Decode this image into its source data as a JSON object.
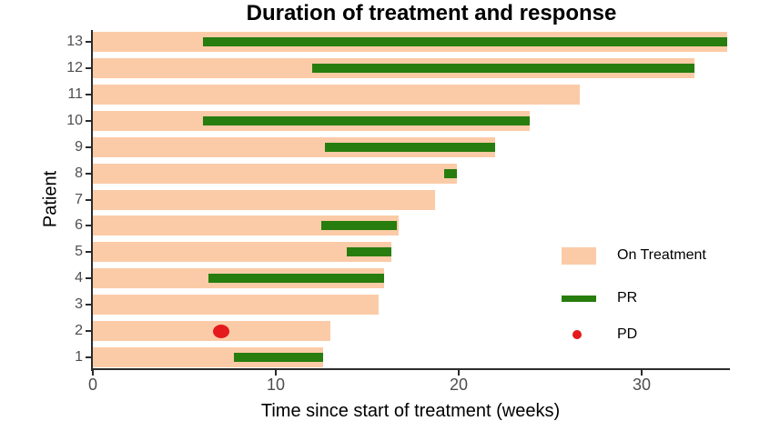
{
  "chart_data": {
    "type": "bar",
    "variant": "swimmer-plot",
    "title": "Duration of treatment and response",
    "xlabel": "Time since start of treatment (weeks)",
    "ylabel": "Patient",
    "x_ticks": [
      0,
      10,
      20,
      30
    ],
    "xlim": [
      0,
      34.7
    ],
    "grid": false,
    "legend_position": "right-middle",
    "colors": {
      "on_treatment": "#FBCBA7",
      "pr": "#277D0E",
      "pd": "#E41A1C",
      "axis": "#2b2b2b",
      "tick_label": "#4d4d4d"
    },
    "legend": [
      {
        "label": "On Treatment",
        "swatch": "bar",
        "color_key": "on_treatment"
      },
      {
        "label": "PR",
        "swatch": "line",
        "color_key": "pr"
      },
      {
        "label": "PD",
        "swatch": "dot",
        "color_key": "pd"
      }
    ],
    "patients": [
      {
        "patient": 13,
        "on_treatment": 34.7,
        "pr": [
          6.0,
          34.7
        ],
        "pd": null
      },
      {
        "patient": 12,
        "on_treatment": 32.9,
        "pr": [
          12.0,
          32.9
        ],
        "pd": null
      },
      {
        "patient": 11,
        "on_treatment": 26.6,
        "pr": null,
        "pd": null
      },
      {
        "patient": 10,
        "on_treatment": 23.9,
        "pr": [
          6.0,
          23.9
        ],
        "pd": null
      },
      {
        "patient": 9,
        "on_treatment": 22.0,
        "pr": [
          12.7,
          22.0
        ],
        "pd": null
      },
      {
        "patient": 8,
        "on_treatment": 19.9,
        "pr": [
          19.2,
          19.9
        ],
        "pd": null
      },
      {
        "patient": 7,
        "on_treatment": 18.7,
        "pr": null,
        "pd": null
      },
      {
        "patient": 6,
        "on_treatment": 16.7,
        "pr": [
          12.5,
          16.6
        ],
        "pd": null
      },
      {
        "patient": 5,
        "on_treatment": 16.3,
        "pr": [
          13.9,
          16.3
        ],
        "pd": null
      },
      {
        "patient": 4,
        "on_treatment": 15.9,
        "pr": [
          6.3,
          15.9
        ],
        "pd": null
      },
      {
        "patient": 3,
        "on_treatment": 15.6,
        "pr": null,
        "pd": null
      },
      {
        "patient": 2,
        "on_treatment": 13.0,
        "pr": null,
        "pd": 7.0
      },
      {
        "patient": 1,
        "on_treatment": 12.6,
        "pr": [
          7.7,
          12.6
        ],
        "pd": null
      }
    ]
  }
}
